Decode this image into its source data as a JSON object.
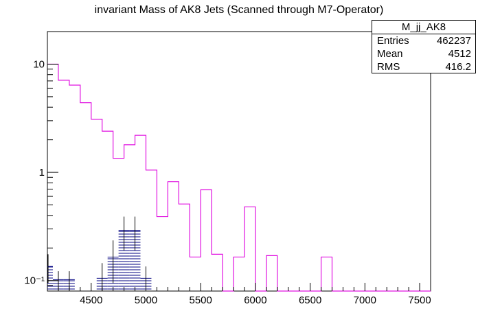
{
  "chart_data": {
    "type": "histogram",
    "title": "invariant Mass of AK8 Jets (Scanned through M7-Operator)",
    "xlabel": "",
    "ylabel": "",
    "xlim": [
      4100,
      7600
    ],
    "ylim": [
      0.08,
      20
    ],
    "y_scale": "log",
    "bin_width": 100,
    "x_ticks": [
      4500,
      5000,
      5500,
      6000,
      6500,
      7000,
      7500
    ],
    "x_tick_labels": [
      "4500",
      "5000",
      "5500",
      "6000",
      "6500",
      "7000",
      "7500"
    ],
    "y_ticks": [
      0.1,
      1,
      10
    ],
    "y_tick_labels": [
      "10⁻¹",
      "1",
      "10"
    ],
    "series": [
      {
        "style": "step",
        "color": "#e010e0",
        "bin_edges": [
          4100,
          4200,
          4300,
          4400,
          4500,
          4600,
          4700,
          4800,
          4900,
          5000,
          5100,
          5200,
          5300,
          5400,
          5500,
          5600,
          5700,
          5800,
          5900,
          6000,
          6100,
          6200,
          6300,
          6400,
          6500,
          6600,
          6700,
          6800,
          6900,
          7000,
          7100,
          7200,
          7300,
          7400,
          7500,
          7600
        ],
        "values": [
          10.0,
          7.1,
          6.4,
          4.4,
          3.1,
          2.4,
          1.35,
          1.8,
          2.2,
          1.05,
          0.39,
          0.82,
          0.51,
          0.165,
          0.69,
          0.175,
          0,
          0.165,
          0.48,
          0,
          0.17,
          0,
          0,
          0,
          0,
          0.165,
          0,
          0,
          0,
          0,
          0,
          0,
          0,
          0,
          0
        ]
      },
      {
        "style": "hatched-error-bars",
        "color": "#000080",
        "bin_centers": [
          4100,
          4200,
          4300,
          4400,
          4500,
          4600,
          4700,
          4800,
          4900,
          5000,
          5100
        ],
        "values": [
          0.135,
          0.102,
          0.102,
          0,
          0,
          0.105,
          0.165,
          0.29,
          0.29,
          0.105,
          0
        ],
        "errors": [
          0.04,
          0.02,
          0.02,
          0,
          0,
          0.04,
          0.07,
          0.1,
          0.1,
          0.03,
          0
        ]
      }
    ],
    "stats_box": {
      "name": "M_jj_AK8",
      "entries_label": "Entries",
      "entries": "462237",
      "mean_label": "Mean",
      "mean": "4512",
      "rms_label": "RMS",
      "rms": "416.2"
    }
  }
}
